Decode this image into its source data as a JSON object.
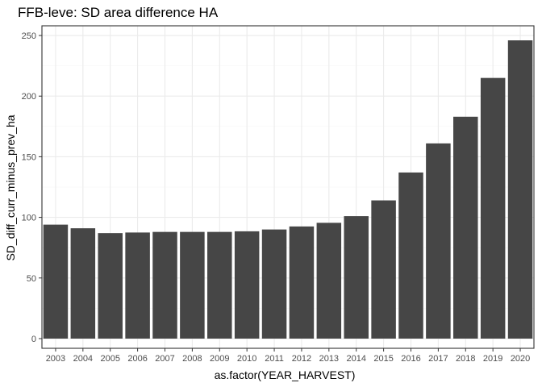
{
  "chart_data": {
    "type": "bar",
    "title": "FFB-leve: SD area difference HA",
    "xlabel": "as.factor(YEAR_HARVEST)",
    "ylabel": "SD_diff_curr_minus_prev_ha",
    "categories": [
      "2003",
      "2004",
      "2005",
      "2006",
      "2007",
      "2008",
      "2009",
      "2010",
      "2011",
      "2012",
      "2013",
      "2014",
      "2015",
      "2016",
      "2017",
      "2018",
      "2019",
      "2020"
    ],
    "values": [
      94,
      91,
      87,
      87.5,
      88,
      88,
      88,
      88.5,
      90,
      92.5,
      95.5,
      101,
      114,
      137,
      161,
      183,
      215,
      246
    ],
    "ylim": [
      -8,
      258
    ],
    "yticks": [
      0,
      50,
      100,
      150,
      200,
      250
    ],
    "grid": true,
    "legend": "none",
    "colors": {
      "bar": "#464646",
      "grid_major": "#ebebeb",
      "grid_minor": "#f5f5f5",
      "panel_border": "#333333",
      "tick": "#333333"
    }
  }
}
